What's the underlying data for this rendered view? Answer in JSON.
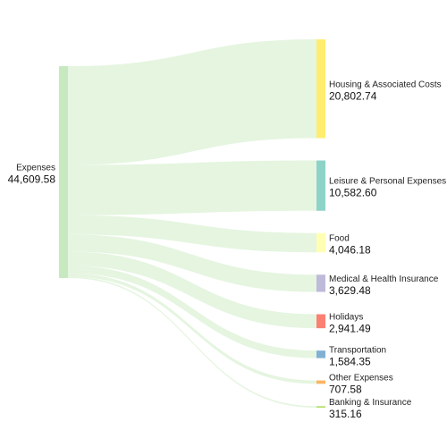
{
  "chart_data": {
    "type": "sankey",
    "source": {
      "name": "Expenses",
      "value_label": "44,609.58",
      "value": 44609.58,
      "color": "#c7e9c0"
    },
    "link_color": "#e5f5e0",
    "targets": [
      {
        "name": "Housing & Associated Costs",
        "value_label": "20,802.74",
        "value": 20802.74,
        "color": "#ffed6f"
      },
      {
        "name": "Leisure & Personal Expenses",
        "value_label": "10,582.60",
        "value": 10582.6,
        "color": "#8dd3c7"
      },
      {
        "name": "Food",
        "value_label": "4,046.18",
        "value": 4046.18,
        "color": "#ffffb3"
      },
      {
        "name": "Medical & Health Insurance",
        "value_label": "3,629.48",
        "value": 3629.48,
        "color": "#bebada"
      },
      {
        "name": "Holidays",
        "value_label": "2,941.49",
        "value": 2941.49,
        "color": "#fb8072"
      },
      {
        "name": "Transportation",
        "value_label": "1,584.35",
        "value": 1584.35,
        "color": "#80b1d3"
      },
      {
        "name": "Other Expenses",
        "value_label": "707.58",
        "value": 707.58,
        "color": "#fdb462"
      },
      {
        "name": "Banking & Insurance",
        "value_label": "315.16",
        "value": 315.16,
        "color": "#b3de69"
      }
    ]
  }
}
